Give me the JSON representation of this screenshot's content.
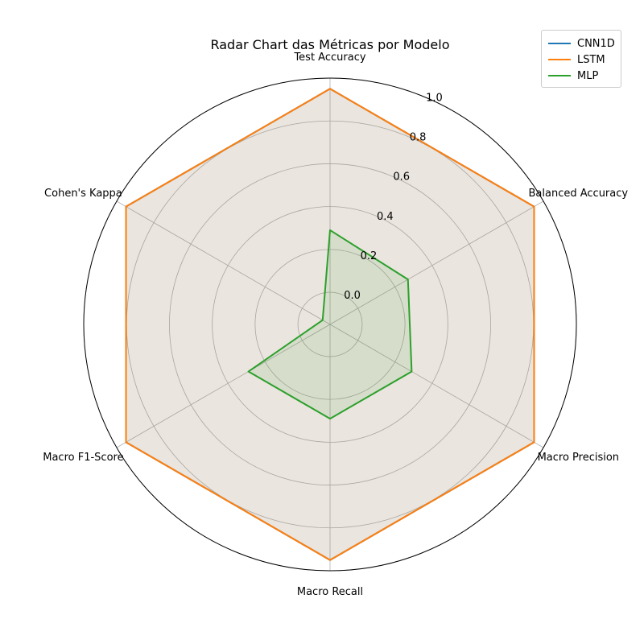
{
  "chart_data": {
    "type": "radar",
    "title": "Radar Chart das Métricas por Modelo",
    "categories": [
      "Test Accuracy",
      "Balanced Accuracy",
      "Macro Precision",
      "Macro Recall",
      "Macro F1-Score",
      "Cohen's Kappa"
    ],
    "rlim": [
      -0.15,
      1.0
    ],
    "rticks": [
      0.0,
      0.2,
      0.4,
      0.6,
      0.8,
      1.0
    ],
    "rtick_labels": [
      "0.0",
      "0.2",
      "0.4",
      "0.6",
      "0.8",
      "1.0"
    ],
    "grid": true,
    "legend_position": "top-right",
    "series": [
      {
        "name": "CNN1D",
        "color": "#1f77b4",
        "values": [
          0.95,
          0.95,
          0.95,
          0.95,
          0.95,
          0.95
        ]
      },
      {
        "name": "LSTM",
        "color": "#ff7f0e",
        "values": [
          0.95,
          0.95,
          0.95,
          0.95,
          0.95,
          0.95
        ]
      },
      {
        "name": "MLP",
        "color": "#2ca02c",
        "values": [
          0.29,
          0.27,
          0.29,
          0.29,
          0.29,
          -0.11
        ]
      }
    ]
  }
}
